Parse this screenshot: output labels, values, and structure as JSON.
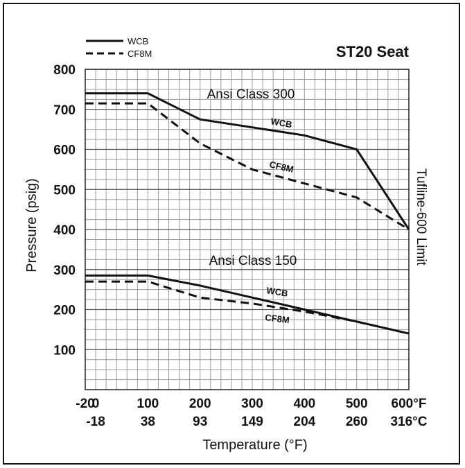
{
  "chart_data": {
    "type": "line",
    "title": "ST20 Seat",
    "xlabel": "Temperature (°F)",
    "ylabel": "Pressure (psig)",
    "xlim": [
      -20,
      600
    ],
    "ylim": [
      0,
      800
    ],
    "grid": true,
    "legend_position": "top-left",
    "y_ticks": [
      "100",
      "200",
      "300",
      "400",
      "500",
      "600",
      "700",
      "800"
    ],
    "x_ticks_f": [
      {
        "value": -20,
        "label": "-20"
      },
      {
        "value": 0,
        "label": "0"
      },
      {
        "value": 100,
        "label": "100"
      },
      {
        "value": 200,
        "label": "200"
      },
      {
        "value": 300,
        "label": "300"
      },
      {
        "value": 400,
        "label": "400"
      },
      {
        "value": 500,
        "label": "500"
      },
      {
        "value": 600,
        "label": "600°F"
      }
    ],
    "x_ticks_c": [
      {
        "value": 0,
        "label": "-18"
      },
      {
        "value": 100,
        "label": "38"
      },
      {
        "value": 200,
        "label": "93"
      },
      {
        "value": 300,
        "label": "149"
      },
      {
        "value": 400,
        "label": "204"
      },
      {
        "value": 500,
        "label": "260"
      },
      {
        "value": 600,
        "label": "316°C"
      }
    ],
    "legend": [
      {
        "name": "WCB",
        "style": "solid"
      },
      {
        "name": "CF8M",
        "style": "dashed"
      }
    ],
    "series": [
      {
        "name": "WCB",
        "group": "Ansi Class 300",
        "style": "solid",
        "x": [
          -20,
          100,
          200,
          300,
          400,
          500,
          600
        ],
        "y": [
          740,
          740,
          675,
          655,
          635,
          600,
          400
        ]
      },
      {
        "name": "CF8M",
        "group": "Ansi Class 300",
        "style": "dashed",
        "x": [
          -20,
          100,
          200,
          300,
          400,
          500,
          600
        ],
        "y": [
          715,
          715,
          615,
          550,
          515,
          480,
          400
        ]
      },
      {
        "name": "WCB",
        "group": "Ansi Class 150",
        "style": "solid",
        "x": [
          -20,
          100,
          200,
          300,
          400,
          500,
          600
        ],
        "y": [
          285,
          285,
          260,
          230,
          200,
          170,
          140
        ]
      },
      {
        "name": "CF8M",
        "group": "Ansi Class 150",
        "style": "dashed",
        "x": [
          -20,
          100,
          200,
          300,
          400,
          500,
          600
        ],
        "y": [
          270,
          270,
          230,
          215,
          195,
          170,
          140
        ]
      }
    ],
    "annotations": {
      "class300": "Ansi Class 300",
      "class150": "Ansi Class 150",
      "wcb300": "WCB",
      "cf8m300": "CF8M",
      "wcb150": "WCB",
      "cf8m150": "CF8M",
      "limit": "Tufline-600 Limit"
    },
    "line_color": "#111111"
  }
}
